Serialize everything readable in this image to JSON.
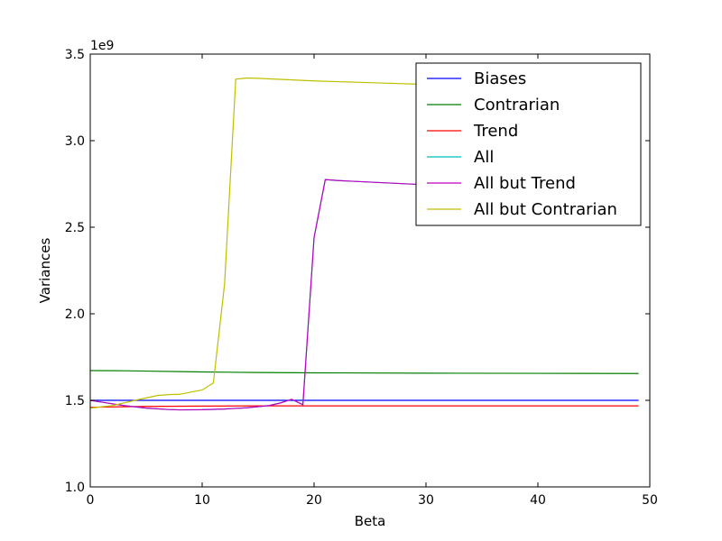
{
  "chart_data": {
    "type": "line",
    "xlabel": "Beta",
    "ylabel": "Variances",
    "y_multiplier_label": "1e9",
    "xlim": [
      0,
      50
    ],
    "ylim": [
      1.0,
      3.5
    ],
    "x_ticks": [
      0,
      10,
      20,
      30,
      40,
      50
    ],
    "x_tick_labels": [
      "0",
      "10",
      "20",
      "30",
      "40",
      "50"
    ],
    "y_ticks": [
      1.0,
      1.5,
      2.0,
      2.5,
      3.0,
      3.5
    ],
    "y_tick_labels": [
      "1.0",
      "1.5",
      "2.0",
      "2.5",
      "3.0",
      "3.5"
    ],
    "grid": false,
    "legend_position": "upper-right",
    "series": [
      {
        "name": "Biases",
        "color": "#0000ff",
        "x": [
          0,
          49
        ],
        "y": [
          1.5,
          1.5
        ]
      },
      {
        "name": "Contrarian",
        "color": "#008000",
        "x": [
          0,
          3,
          5,
          8,
          10,
          15,
          20,
          30,
          40,
          49
        ],
        "y": [
          1.672,
          1.671,
          1.669,
          1.666,
          1.664,
          1.661,
          1.659,
          1.657,
          1.656,
          1.655
        ]
      },
      {
        "name": "Trend",
        "color": "#ff0000",
        "x": [
          0,
          2,
          5,
          10,
          15,
          20,
          30,
          40,
          49
        ],
        "y": [
          1.46,
          1.462,
          1.465,
          1.467,
          1.468,
          1.468,
          1.468,
          1.468,
          1.468
        ]
      },
      {
        "name": "All",
        "color": "#00bfbf",
        "x": [
          0,
          1,
          3,
          5,
          7,
          8,
          10,
          12,
          14,
          16,
          17,
          18,
          19,
          20,
          21,
          22,
          30,
          35,
          40,
          49
        ],
        "y": [
          1.5,
          1.49,
          1.47,
          1.455,
          1.447,
          1.445,
          1.446,
          1.45,
          1.457,
          1.47,
          1.485,
          1.506,
          1.475,
          2.44,
          2.775,
          2.77,
          2.745,
          2.736,
          2.73,
          2.72
        ]
      },
      {
        "name": "All but Trend",
        "color": "#bf00bf",
        "x": [
          0,
          1,
          3,
          5,
          7,
          8,
          10,
          12,
          14,
          16,
          17,
          18,
          19,
          20,
          21,
          22,
          30,
          35,
          40,
          49
        ],
        "y": [
          1.5,
          1.49,
          1.47,
          1.455,
          1.447,
          1.445,
          1.446,
          1.45,
          1.457,
          1.47,
          1.485,
          1.506,
          1.475,
          2.44,
          2.775,
          2.77,
          2.745,
          2.736,
          2.73,
          2.72
        ]
      },
      {
        "name": "All but Contrarian",
        "color": "#bfbf00",
        "x": [
          0,
          2,
          4,
          6,
          7,
          8,
          10,
          11,
          12,
          13,
          14,
          15,
          20,
          25,
          30,
          35,
          40,
          49
        ],
        "y": [
          1.455,
          1.47,
          1.5,
          1.528,
          1.533,
          1.535,
          1.56,
          1.6,
          2.17,
          3.355,
          3.362,
          3.36,
          3.345,
          3.335,
          3.325,
          3.318,
          3.31,
          3.3
        ]
      }
    ]
  }
}
